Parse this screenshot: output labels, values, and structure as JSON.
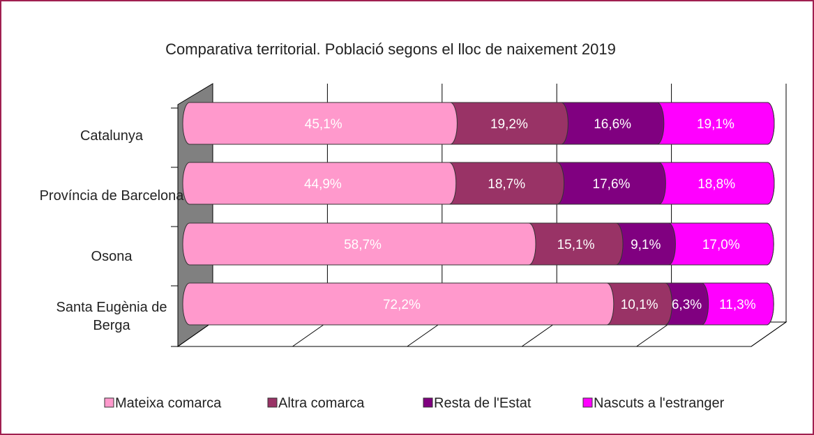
{
  "chart_data": {
    "type": "stacked_bar_3d",
    "title": "Comparativa territorial. Població segons el lloc de naixement 2019",
    "categories": [
      "Catalunya",
      "Província de Barcelona",
      "Osona",
      "Santa Eugènia de Berga"
    ],
    "series": [
      {
        "name": "Mateixa comarca",
        "color": "#ff99cc",
        "values": [
          45.1,
          44.9,
          58.7,
          72.2
        ],
        "value_labels": [
          "45,1%",
          "44,9%",
          "58,7%",
          "72,2%"
        ]
      },
      {
        "name": "Altra comarca",
        "color": "#993366",
        "values": [
          19.2,
          18.7,
          15.1,
          10.1
        ],
        "value_labels": [
          "19,2%",
          "18,7%",
          "15,1%",
          "10,1%"
        ]
      },
      {
        "name": "Resta de l'Estat",
        "color": "#800080",
        "values": [
          16.6,
          17.6,
          9.1,
          6.3
        ],
        "value_labels": [
          "16,6%",
          "17,6%",
          "9,1%",
          "6,3%"
        ]
      },
      {
        "name": "Nascuts a l'estranger",
        "color": "#ff00ff",
        "values": [
          19.1,
          18.8,
          17.0,
          11.3
        ],
        "value_labels": [
          "19,1%",
          "18,8%",
          "17,0%",
          "11,3%"
        ]
      }
    ],
    "xlim": [
      0,
      100
    ],
    "xticks": [
      0,
      20,
      40,
      60,
      80,
      100
    ],
    "grid": true,
    "legend": "bottom"
  }
}
